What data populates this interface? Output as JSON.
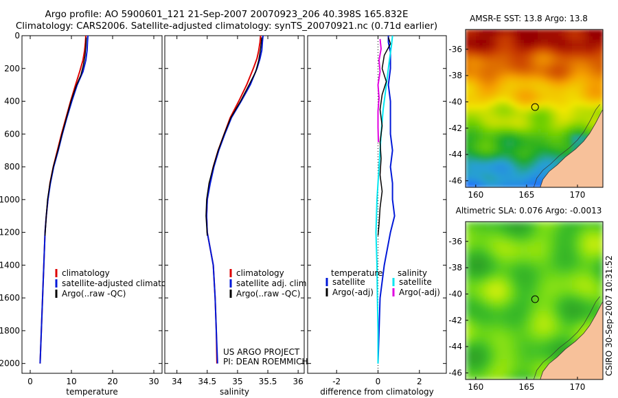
{
  "header": {
    "line1": "Argo profile: AO 5900601_121 21-Sep-2007 20070923_206 40.398S 165.832E",
    "line2": "Climatology: CARS2006. Satellite-adjusted climatology: synTS_20070921.nc (0.71d earlier)"
  },
  "credit": "CSIRO 30-Sep-2007 10:31:52",
  "project_note": [
    "US ARGO PROJECT",
    "PI: DEAN ROEMMICH"
  ],
  "colors": {
    "climatology": "#dd0000",
    "satellite": "#0018d8",
    "argo": "#000000",
    "satellite_cyan": "#00e6f0",
    "argo_adj_magenta": "#e000e0",
    "land": "#f7c19a"
  },
  "chart_data": [
    {
      "type": "line",
      "panel": "temperature",
      "xlabel": "temperature",
      "ylabel": "",
      "xlim": [
        -2,
        32
      ],
      "ylim": [
        2060,
        0
      ],
      "y_reversed": true,
      "xticks": [
        0,
        10,
        20,
        30
      ],
      "yticks": [
        0,
        200,
        400,
        600,
        800,
        1000,
        1200,
        1400,
        1600,
        1800,
        2000
      ],
      "legend": {
        "position": "lower-middle",
        "entries": [
          "climatology",
          "satellite-adjusted climatology",
          "Argo(..raw -QC)"
        ]
      },
      "series": [
        {
          "name": "climatology",
          "color": "climatology",
          "width": 2,
          "points": [
            [
              13.5,
              0
            ],
            [
              13.4,
              40
            ],
            [
              13.2,
              90
            ],
            [
              12.8,
              150
            ],
            [
              12.0,
              220
            ],
            [
              11.0,
              300
            ],
            [
              9.8,
              400
            ],
            [
              8.7,
              500
            ],
            [
              7.6,
              600
            ],
            [
              6.6,
              700
            ],
            [
              5.6,
              800
            ],
            [
              4.8,
              900
            ],
            [
              4.3,
              1000
            ],
            [
              3.9,
              1100
            ],
            [
              3.6,
              1200
            ],
            [
              3.3,
              1400
            ],
            [
              3.0,
              1600
            ],
            [
              2.7,
              1800
            ],
            [
              2.4,
              2000
            ]
          ]
        },
        {
          "name": "satellite-adjusted climatology",
          "color": "satellite",
          "width": 2,
          "points": [
            [
              14.0,
              0
            ],
            [
              13.9,
              40
            ],
            [
              13.8,
              90
            ],
            [
              13.5,
              150
            ],
            [
              12.8,
              220
            ],
            [
              11.4,
              300
            ],
            [
              10.1,
              400
            ],
            [
              8.9,
              500
            ],
            [
              7.8,
              600
            ],
            [
              6.8,
              700
            ],
            [
              5.7,
              800
            ],
            [
              4.9,
              900
            ],
            [
              4.3,
              1000
            ],
            [
              3.9,
              1100
            ],
            [
              3.6,
              1200
            ],
            [
              3.3,
              1400
            ],
            [
              3.0,
              1600
            ],
            [
              2.7,
              1800
            ],
            [
              2.4,
              2000
            ]
          ]
        },
        {
          "name": "Argo(..raw -QC)",
          "color": "argo",
          "width": 1.5,
          "points": [
            [
              13.6,
              10
            ],
            [
              13.5,
              60
            ],
            [
              13.3,
              120
            ],
            [
              12.9,
              180
            ],
            [
              12.3,
              240
            ],
            [
              11.1,
              310
            ],
            [
              9.9,
              400
            ],
            [
              8.8,
              500
            ],
            [
              7.7,
              600
            ],
            [
              6.7,
              700
            ],
            [
              5.6,
              800
            ],
            [
              4.8,
              900
            ],
            [
              4.2,
              1000
            ],
            [
              3.9,
              1100
            ],
            [
              3.6,
              1220
            ]
          ]
        }
      ]
    },
    {
      "type": "line",
      "panel": "salinity",
      "xlabel": "salinity",
      "ylabel": "",
      "xlim": [
        33.8,
        36.1
      ],
      "ylim": [
        2060,
        0
      ],
      "y_reversed": true,
      "xticks": [
        34,
        34.5,
        35,
        35.5,
        36
      ],
      "legend": {
        "position": "lower-middle",
        "entries": [
          "climatology",
          "satellite adj. clim.",
          "Argo(..raw -QC)"
        ]
      },
      "series": [
        {
          "name": "climatology",
          "color": "climatology",
          "width": 2,
          "points": [
            [
              35.38,
              0
            ],
            [
              35.37,
              40
            ],
            [
              35.35,
              90
            ],
            [
              35.32,
              140
            ],
            [
              35.26,
              200
            ],
            [
              35.15,
              300
            ],
            [
              35.02,
              400
            ],
            [
              34.88,
              500
            ],
            [
              34.78,
              600
            ],
            [
              34.68,
              700
            ],
            [
              34.6,
              800
            ],
            [
              34.54,
              900
            ],
            [
              34.5,
              1000
            ],
            [
              34.49,
              1100
            ],
            [
              34.5,
              1200
            ],
            [
              34.55,
              1300
            ],
            [
              34.6,
              1400
            ],
            [
              34.63,
              1600
            ],
            [
              34.65,
              1800
            ],
            [
              34.66,
              2000
            ]
          ]
        },
        {
          "name": "satellite adj. clim.",
          "color": "satellite",
          "width": 2,
          "points": [
            [
              35.42,
              0
            ],
            [
              35.41,
              40
            ],
            [
              35.4,
              90
            ],
            [
              35.37,
              140
            ],
            [
              35.32,
              200
            ],
            [
              35.21,
              300
            ],
            [
              35.06,
              400
            ],
            [
              34.9,
              500
            ],
            [
              34.79,
              600
            ],
            [
              34.69,
              700
            ],
            [
              34.61,
              800
            ],
            [
              34.55,
              900
            ],
            [
              34.5,
              1000
            ],
            [
              34.49,
              1100
            ],
            [
              34.5,
              1200
            ],
            [
              34.55,
              1300
            ],
            [
              34.6,
              1400
            ],
            [
              34.63,
              1600
            ],
            [
              34.65,
              1800
            ],
            [
              34.67,
              2000
            ]
          ]
        },
        {
          "name": "Argo(..raw -QC)",
          "color": "argo",
          "width": 1.5,
          "points": [
            [
              35.4,
              10
            ],
            [
              35.38,
              80
            ],
            [
              35.35,
              150
            ],
            [
              35.3,
              220
            ],
            [
              35.19,
              300
            ],
            [
              35.05,
              400
            ],
            [
              34.89,
              500
            ],
            [
              34.78,
              600
            ],
            [
              34.68,
              700
            ],
            [
              34.6,
              800
            ],
            [
              34.53,
              900
            ],
            [
              34.49,
              1000
            ],
            [
              34.48,
              1100
            ],
            [
              34.5,
              1220
            ]
          ]
        }
      ]
    },
    {
      "type": "line",
      "panel": "difference",
      "xlabel": "difference from climatology",
      "ylabel": "",
      "xlim": [
        -3.4,
        3.3
      ],
      "ylim": [
        2060,
        0
      ],
      "y_reversed": true,
      "xticks": [
        -2,
        0,
        2
      ],
      "zero_line": true,
      "legend": {
        "position": "lower-middle",
        "columns": [
          {
            "title": "temperature",
            "entries": [
              "satellite",
              "Argo(-adj)"
            ]
          },
          {
            "title": "salinity",
            "entries": [
              "satellite",
              "Argo(-adj)"
            ]
          }
        ]
      },
      "series": [
        {
          "name": "satellite",
          "group": "temperature",
          "color": "satellite",
          "width": 2,
          "points": [
            [
              0.5,
              0
            ],
            [
              0.5,
              40
            ],
            [
              0.6,
              100
            ],
            [
              0.6,
              200
            ],
            [
              0.5,
              300
            ],
            [
              0.6,
              400
            ],
            [
              0.6,
              500
            ],
            [
              0.6,
              600
            ],
            [
              0.7,
              700
            ],
            [
              0.6,
              800
            ],
            [
              0.7,
              900
            ],
            [
              0.7,
              1000
            ],
            [
              0.8,
              1100
            ],
            [
              0.6,
              1200
            ],
            [
              0.3,
              1400
            ],
            [
              0.1,
              1600
            ],
            [
              0.05,
              1800
            ],
            [
              0.0,
              2000
            ]
          ]
        },
        {
          "name": "satellite",
          "group": "salinity",
          "color": "satellite_cyan",
          "width": 2,
          "points": [
            [
              0.7,
              0
            ],
            [
              0.65,
              60
            ],
            [
              0.55,
              150
            ],
            [
              0.45,
              250
            ],
            [
              0.35,
              350
            ],
            [
              0.25,
              450
            ],
            [
              0.15,
              600
            ],
            [
              0.05,
              800
            ],
            [
              -0.05,
              1000
            ],
            [
              -0.1,
              1200
            ],
            [
              -0.05,
              1400
            ],
            [
              -0.03,
              1600
            ],
            [
              0.0,
              1800
            ],
            [
              0.0,
              2000
            ]
          ]
        },
        {
          "name": "Argo(-adj)",
          "group": "temperature",
          "color": "argo",
          "width": 1.5,
          "points": [
            [
              0.5,
              10
            ],
            [
              0.6,
              50
            ],
            [
              0.3,
              120
            ],
            [
              0.2,
              200
            ],
            [
              0.4,
              280
            ],
            [
              0.2,
              360
            ],
            [
              0.1,
              450
            ],
            [
              0.2,
              550
            ],
            [
              0.1,
              650
            ],
            [
              0.15,
              750
            ],
            [
              0.1,
              850
            ],
            [
              0.2,
              950
            ],
            [
              0.1,
              1050
            ],
            [
              0.05,
              1150
            ],
            [
              0.0,
              1220
            ]
          ]
        },
        {
          "name": "Argo(-adj)",
          "group": "salinity",
          "color": "argo_adj_magenta",
          "width": 2,
          "points": [
            [
              0.1,
              20
            ],
            [
              0.15,
              80
            ],
            [
              0.05,
              150
            ],
            [
              0.1,
              220
            ],
            [
              0.0,
              300
            ],
            [
              0.05,
              380
            ],
            [
              0.0,
              460
            ],
            [
              0.0,
              560
            ],
            [
              0.02,
              650
            ]
          ]
        }
      ]
    },
    {
      "type": "heatmap",
      "panel": "sst-map",
      "title": "AMSR-E SST: 13.8 Argo: 13.8",
      "xlim": [
        159,
        172.5
      ],
      "ylim": [
        -46.5,
        -34.5
      ],
      "xticks": [
        160,
        165,
        170
      ],
      "yticks": [
        -36,
        -38,
        -40,
        -42,
        -44,
        -46
      ],
      "marker": {
        "lon": 165.832,
        "lat": -40.398
      }
    },
    {
      "type": "heatmap",
      "panel": "sla-map",
      "title": "Altimetric SLA: 0.076 Argo: -0.0013",
      "xlim": [
        159,
        172.5
      ],
      "ylim": [
        -46.5,
        -34.5
      ],
      "xticks": [
        160,
        165,
        170
      ],
      "yticks": [
        -36,
        -38,
        -40,
        -42,
        -44,
        -46
      ],
      "marker": {
        "lon": 165.832,
        "lat": -40.398
      }
    }
  ]
}
